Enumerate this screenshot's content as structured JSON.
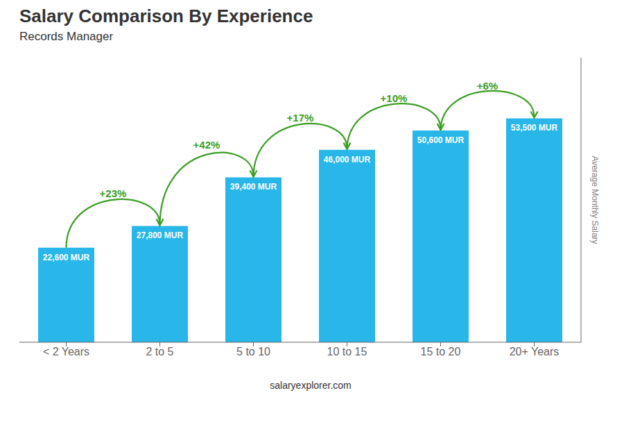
{
  "chart_data": {
    "type": "bar",
    "title": "Salary Comparison By Experience",
    "subtitle": "Records Manager",
    "ylabel": "Average Monthly Salary",
    "footer": "salaryexplorer.com",
    "categories": [
      "< 2 Years",
      "2 to 5",
      "5 to 10",
      "10 to 15",
      "15 to 20",
      "20+ Years"
    ],
    "values": [
      22600,
      27800,
      39400,
      46000,
      50600,
      53500
    ],
    "value_labels": [
      "22,600 MUR",
      "27,800 MUR",
      "39,400 MUR",
      "46,000 MUR",
      "50,600 MUR",
      "53,500 MUR"
    ],
    "data_labels": true,
    "color": "#29b6e8",
    "ylim": [
      0,
      68000
    ],
    "tick_labels": "x",
    "grid": false,
    "annotations": [
      {
        "from": "< 2 Years",
        "to": "2 to 5",
        "text": "+23%"
      },
      {
        "from": "2 to 5",
        "to": "5 to 10",
        "text": "+42%"
      },
      {
        "from": "5 to 10",
        "to": "10 to 15",
        "text": "+17%"
      },
      {
        "from": "10 to 15",
        "to": "15 to 20",
        "text": "+10%"
      },
      {
        "from": "15 to 20",
        "to": "20+ Years",
        "text": "+6%"
      }
    ]
  }
}
